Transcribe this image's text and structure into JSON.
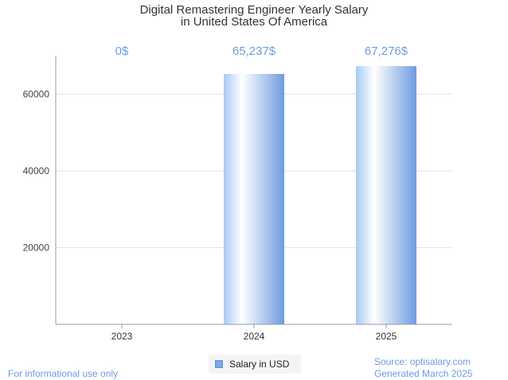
{
  "chart_data": {
    "type": "bar",
    "title": [
      "Digital Remastering Engineer Yearly Salary",
      "in United States Of America"
    ],
    "categories": [
      "2023",
      "2024",
      "2025"
    ],
    "values": [
      0,
      65237,
      67276
    ],
    "value_labels": [
      "0$",
      "65,237$",
      "67,276$"
    ],
    "y_ticks": [
      20000,
      40000,
      60000
    ],
    "y_tick_labels": [
      "20000",
      "40000",
      "60000"
    ],
    "ylim": [
      0,
      70000
    ],
    "grid": true,
    "legend": {
      "label": "Salary in USD",
      "position": "bottom-center"
    },
    "colors": {
      "bar_light": "#ffffff",
      "bar_mid": "#a7cbf4",
      "bar_dark": "#6f9be0",
      "value_label": "#6f9be0"
    }
  },
  "footer": {
    "disclaimer": "For informational use only",
    "source": "Source: optisalary.com",
    "generated": "Generated March 2025"
  }
}
